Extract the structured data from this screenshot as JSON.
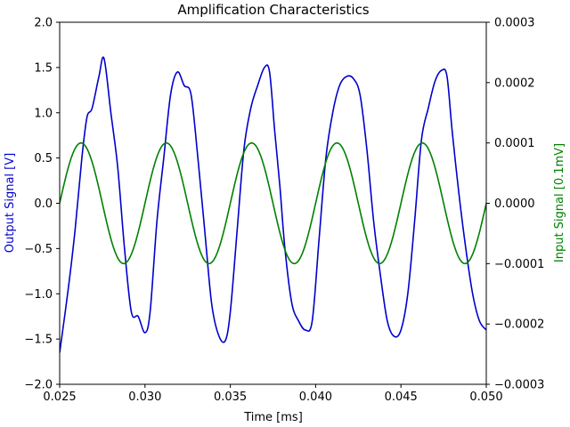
{
  "chart_data": {
    "type": "line",
    "title": "Amplification Characteristics",
    "xlabel": "Time [ms]",
    "ylabel_left": "Output Signal [V]",
    "ylabel_right": "Input Signal [0.1mV]",
    "xlim": [
      0.025,
      0.05
    ],
    "ylim_left": [
      -2.0,
      2.0
    ],
    "ylim_right": [
      -0.0003,
      0.0003
    ],
    "grid": false,
    "legend": "none",
    "xticks": [
      "0.025",
      "0.030",
      "0.035",
      "0.040",
      "0.045",
      "0.050"
    ],
    "yticks_left": [
      "−2.0",
      "−1.5",
      "−1.0",
      "−0.5",
      "0.0",
      "0.5",
      "1.0",
      "1.5",
      "2.0"
    ],
    "yticks_right": [
      "−0.0003",
      "−0.0002",
      "−0.0001",
      "0.0000",
      "0.0001",
      "0.0002",
      "0.0003"
    ],
    "series": [
      {
        "axis": "left",
        "color": "#0000cc",
        "x": [
          0.025,
          0.0255,
          0.0259,
          0.0263,
          0.0266,
          0.0269,
          0.0273,
          0.0276,
          0.028,
          0.0284,
          0.0288,
          0.0292,
          0.0296,
          0.03,
          0.0303,
          0.0307,
          0.0311,
          0.0315,
          0.0319,
          0.0323,
          0.0327,
          0.0331,
          0.0335,
          0.0339,
          0.0343,
          0.0347,
          0.035,
          0.0354,
          0.0358,
          0.0362,
          0.0366,
          0.037,
          0.0373,
          0.0376,
          0.0379,
          0.0382,
          0.0386,
          0.039,
          0.0394,
          0.0398,
          0.0402,
          0.0406,
          0.041,
          0.0414,
          0.0418,
          0.0422,
          0.0426,
          0.043,
          0.0434,
          0.0438,
          0.0442,
          0.0446,
          0.045,
          0.0454,
          0.0458,
          0.0462,
          0.0466,
          0.047,
          0.0474,
          0.0477,
          0.048,
          0.0484,
          0.0488,
          0.0492,
          0.0496,
          0.05
        ],
        "y": [
          -1.65,
          -0.95,
          -0.3,
          0.5,
          0.95,
          1.05,
          1.4,
          1.6,
          1.0,
          0.4,
          -0.5,
          -1.2,
          -1.25,
          -1.43,
          -1.2,
          -0.2,
          0.5,
          1.2,
          1.45,
          1.3,
          1.2,
          0.5,
          -0.3,
          -1.1,
          -1.45,
          -1.52,
          -1.2,
          -0.3,
          0.6,
          1.05,
          1.3,
          1.5,
          1.45,
          0.8,
          0.2,
          -0.5,
          -1.1,
          -1.3,
          -1.4,
          -1.3,
          -0.4,
          0.5,
          1.0,
          1.3,
          1.4,
          1.38,
          1.2,
          0.6,
          -0.2,
          -0.8,
          -1.3,
          -1.47,
          -1.4,
          -1.0,
          -0.2,
          0.7,
          1.05,
          1.35,
          1.47,
          1.4,
          0.8,
          0.1,
          -0.5,
          -1.0,
          -1.3,
          -1.4
        ]
      },
      {
        "axis": "right",
        "color": "#008000",
        "kind": "sine",
        "amplitude": 0.0001,
        "period": 0.005,
        "phase_start": 0.025
      }
    ]
  }
}
